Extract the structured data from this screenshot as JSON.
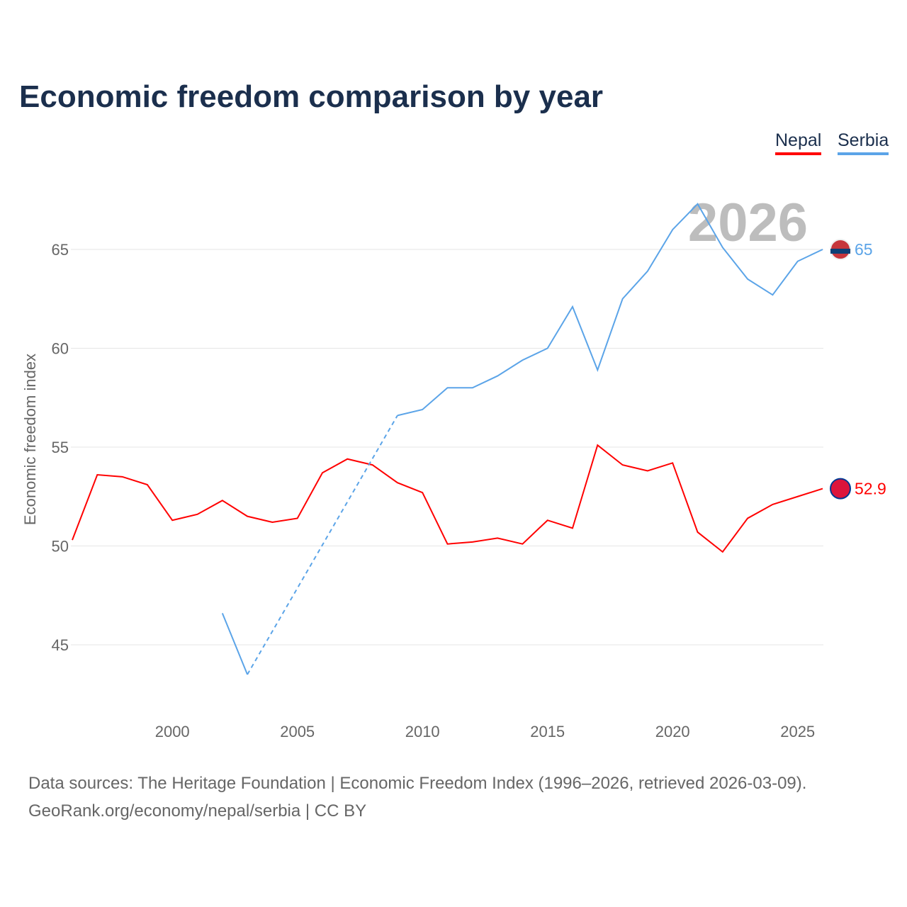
{
  "title": "Economic freedom comparison by year",
  "footer": {
    "line1": "Data sources: The Heritage Foundation | Economic Freedom Index (1996–2026, retrieved 2026-03-09).",
    "line2": "GeoRank.org/economy/nepal/serbia | CC BY"
  },
  "chart_data": {
    "type": "line",
    "title": "Economic freedom comparison by year",
    "ylabel": "Economic freedom index",
    "xlabel": "",
    "year_label": "2026",
    "xlim": [
      1996,
      2026
    ],
    "ylim": [
      41.5,
      68.5
    ],
    "xticks": [
      2000,
      2005,
      2010,
      2015,
      2020,
      2025
    ],
    "yticks": [
      45,
      50,
      55,
      60,
      65
    ],
    "legend": "top-right",
    "series": [
      {
        "name": "Nepal",
        "color": "#ff0000",
        "end_label": "52.9",
        "x": [
          1996,
          1997,
          1998,
          1999,
          2000,
          2001,
          2002,
          2003,
          2004,
          2005,
          2006,
          2007,
          2008,
          2009,
          2010,
          2011,
          2012,
          2013,
          2014,
          2015,
          2016,
          2017,
          2018,
          2019,
          2020,
          2021,
          2022,
          2023,
          2024,
          2025,
          2026
        ],
        "values": [
          50.3,
          53.6,
          53.5,
          53.1,
          51.3,
          51.6,
          52.3,
          51.5,
          51.2,
          51.4,
          53.7,
          54.4,
          54.1,
          53.2,
          52.7,
          50.1,
          50.2,
          50.4,
          50.1,
          51.3,
          50.9,
          55.1,
          54.1,
          53.8,
          54.2,
          50.7,
          49.7,
          51.4,
          52.1,
          52.5,
          52.9
        ]
      },
      {
        "name": "Serbia",
        "color": "#5ba4e8",
        "end_label": "65",
        "x": [
          2002,
          2003,
          2009,
          2010,
          2011,
          2012,
          2013,
          2014,
          2015,
          2016,
          2017,
          2018,
          2019,
          2020,
          2021,
          2022,
          2023,
          2024,
          2025,
          2026
        ],
        "values": [
          46.6,
          43.5,
          56.6,
          56.9,
          58.0,
          58.0,
          58.6,
          59.4,
          60.0,
          62.1,
          58.9,
          62.5,
          63.9,
          66.0,
          67.3,
          65.1,
          63.5,
          62.7,
          64.4,
          65.0
        ],
        "gap_dashed": [
          2003,
          2009
        ]
      }
    ]
  }
}
